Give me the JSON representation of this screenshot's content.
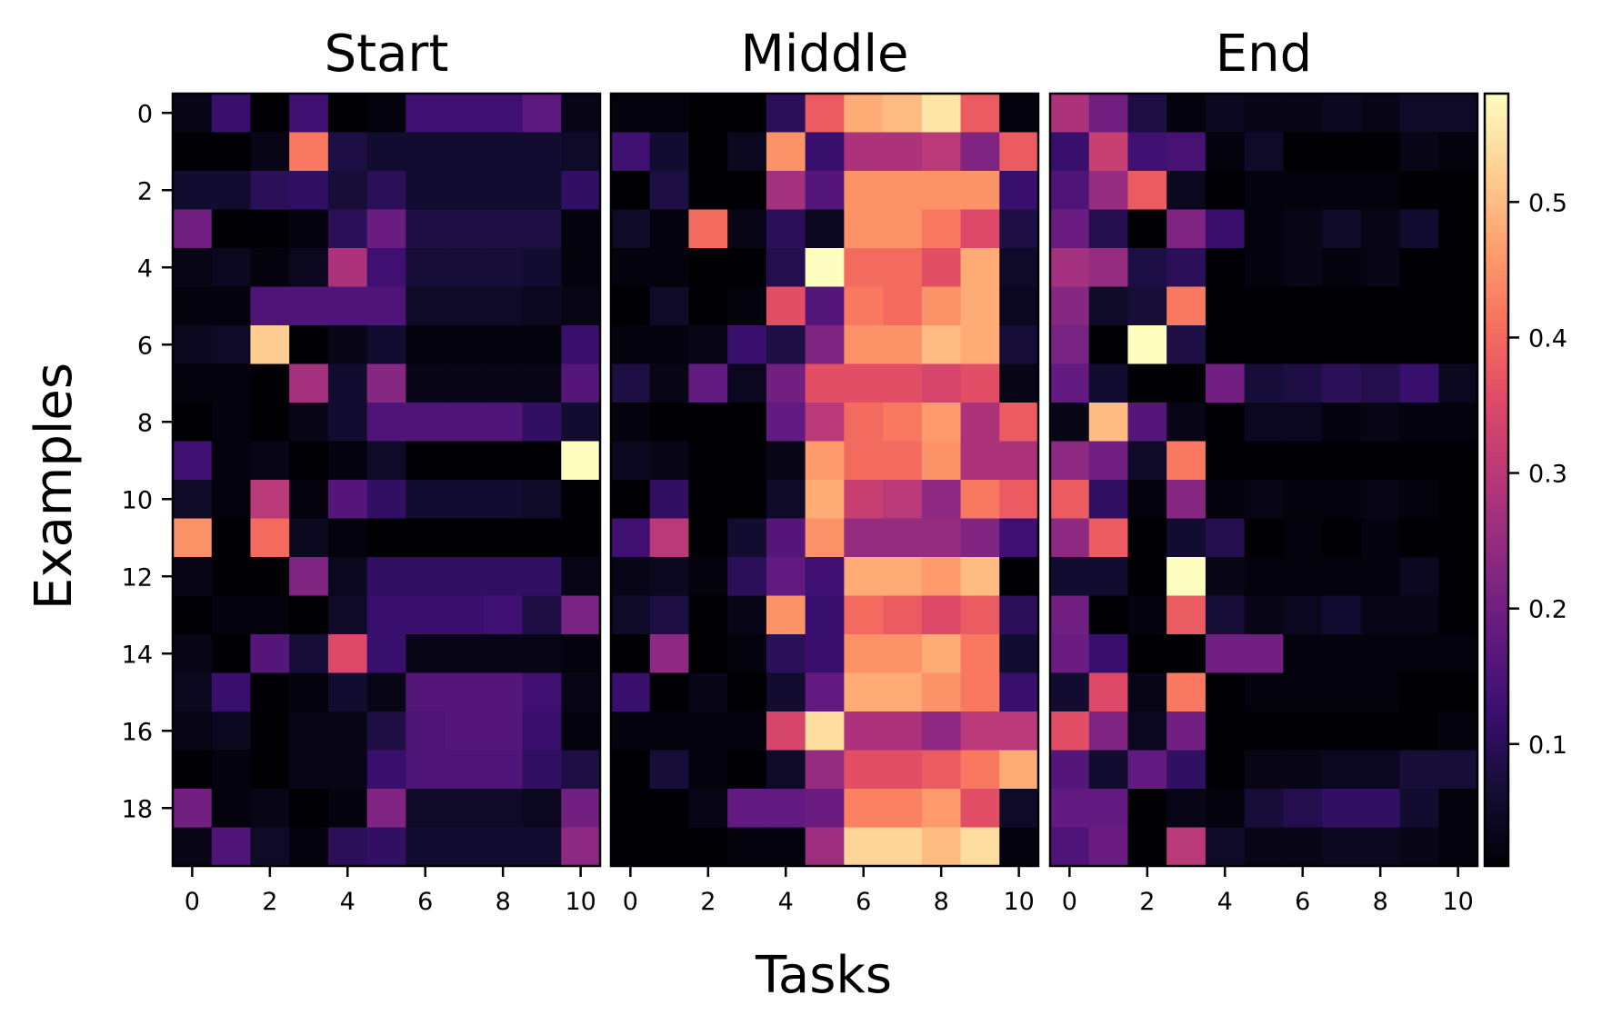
{
  "chart_data": {
    "type": "heatmap",
    "xlabel": "Tasks",
    "ylabel": "Examples",
    "colormap": "magma",
    "colorbar": {
      "min": 0.01,
      "max": 0.58,
      "ticks": [
        0.1,
        0.2,
        0.3,
        0.4,
        0.5
      ],
      "tick_labels": [
        "0.1",
        "0.2",
        "0.3",
        "0.4",
        "0.5"
      ]
    },
    "x_ticks": [
      0,
      2,
      4,
      6,
      8,
      10
    ],
    "x_tick_labels": [
      "0",
      "2",
      "4",
      "6",
      "8",
      "10"
    ],
    "y_ticks": [
      0,
      2,
      4,
      6,
      8,
      10,
      12,
      14,
      16,
      18
    ],
    "y_tick_labels": [
      "0",
      "2",
      "4",
      "6",
      "8",
      "10",
      "12",
      "14",
      "16",
      "18"
    ],
    "rows": 20,
    "cols": 11,
    "panels": [
      {
        "title": "Start",
        "values": [
          [
            0.03,
            0.12,
            0.01,
            0.13,
            0.01,
            0.02,
            0.13,
            0.13,
            0.13,
            0.17,
            0.03
          ],
          [
            0.01,
            0.01,
            0.03,
            0.42,
            0.08,
            0.06,
            0.06,
            0.06,
            0.06,
            0.06,
            0.05
          ],
          [
            0.06,
            0.06,
            0.1,
            0.11,
            0.07,
            0.1,
            0.06,
            0.06,
            0.06,
            0.06,
            0.11
          ],
          [
            0.2,
            0.01,
            0.01,
            0.02,
            0.1,
            0.19,
            0.08,
            0.08,
            0.08,
            0.08,
            0.02
          ],
          [
            0.03,
            0.04,
            0.02,
            0.04,
            0.28,
            0.13,
            0.07,
            0.07,
            0.07,
            0.06,
            0.02
          ],
          [
            0.02,
            0.02,
            0.15,
            0.15,
            0.15,
            0.15,
            0.05,
            0.05,
            0.05,
            0.04,
            0.03
          ],
          [
            0.04,
            0.05,
            0.52,
            0.01,
            0.03,
            0.06,
            0.02,
            0.02,
            0.02,
            0.02,
            0.12
          ],
          [
            0.02,
            0.02,
            0.01,
            0.27,
            0.06,
            0.23,
            0.03,
            0.03,
            0.03,
            0.03,
            0.16
          ],
          [
            0.01,
            0.02,
            0.01,
            0.03,
            0.06,
            0.15,
            0.15,
            0.15,
            0.15,
            0.11,
            0.06
          ],
          [
            0.13,
            0.02,
            0.03,
            0.01,
            0.02,
            0.05,
            0.01,
            0.01,
            0.01,
            0.01,
            0.58
          ],
          [
            0.05,
            0.02,
            0.3,
            0.02,
            0.16,
            0.11,
            0.06,
            0.06,
            0.06,
            0.05,
            0.01
          ],
          [
            0.45,
            0.01,
            0.4,
            0.04,
            0.02,
            0.01,
            0.01,
            0.01,
            0.01,
            0.01,
            0.01
          ],
          [
            0.03,
            0.01,
            0.01,
            0.22,
            0.04,
            0.11,
            0.11,
            0.11,
            0.11,
            0.11,
            0.03
          ],
          [
            0.01,
            0.02,
            0.02,
            0.01,
            0.05,
            0.12,
            0.12,
            0.12,
            0.13,
            0.08,
            0.21
          ],
          [
            0.03,
            0.01,
            0.16,
            0.07,
            0.35,
            0.12,
            0.03,
            0.03,
            0.03,
            0.03,
            0.02
          ],
          [
            0.04,
            0.12,
            0.01,
            0.02,
            0.06,
            0.03,
            0.16,
            0.16,
            0.16,
            0.13,
            0.03
          ],
          [
            0.03,
            0.04,
            0.01,
            0.03,
            0.03,
            0.08,
            0.15,
            0.16,
            0.16,
            0.12,
            0.02
          ],
          [
            0.01,
            0.02,
            0.01,
            0.03,
            0.03,
            0.12,
            0.15,
            0.15,
            0.15,
            0.11,
            0.08
          ],
          [
            0.2,
            0.02,
            0.03,
            0.01,
            0.02,
            0.22,
            0.05,
            0.05,
            0.05,
            0.04,
            0.2
          ],
          [
            0.03,
            0.15,
            0.05,
            0.02,
            0.1,
            0.11,
            0.06,
            0.06,
            0.06,
            0.06,
            0.24
          ]
        ]
      },
      {
        "title": "Middle",
        "values": [
          [
            0.02,
            0.02,
            0.01,
            0.01,
            0.1,
            0.38,
            0.48,
            0.5,
            0.55,
            0.38,
            0.02
          ],
          [
            0.13,
            0.06,
            0.01,
            0.04,
            0.45,
            0.12,
            0.28,
            0.28,
            0.3,
            0.22,
            0.38
          ],
          [
            0.01,
            0.08,
            0.01,
            0.01,
            0.27,
            0.16,
            0.45,
            0.45,
            0.45,
            0.45,
            0.12
          ],
          [
            0.05,
            0.02,
            0.4,
            0.03,
            0.1,
            0.04,
            0.45,
            0.45,
            0.42,
            0.35,
            0.08
          ],
          [
            0.02,
            0.02,
            0.01,
            0.01,
            0.09,
            0.58,
            0.4,
            0.4,
            0.36,
            0.48,
            0.05
          ],
          [
            0.01,
            0.05,
            0.01,
            0.02,
            0.36,
            0.16,
            0.42,
            0.4,
            0.45,
            0.48,
            0.04
          ],
          [
            0.02,
            0.02,
            0.03,
            0.12,
            0.08,
            0.22,
            0.45,
            0.45,
            0.5,
            0.48,
            0.07
          ],
          [
            0.08,
            0.03,
            0.18,
            0.04,
            0.2,
            0.36,
            0.36,
            0.36,
            0.34,
            0.36,
            0.03
          ],
          [
            0.02,
            0.01,
            0.01,
            0.01,
            0.18,
            0.3,
            0.4,
            0.42,
            0.46,
            0.28,
            0.38
          ],
          [
            0.04,
            0.03,
            0.01,
            0.01,
            0.03,
            0.46,
            0.4,
            0.4,
            0.45,
            0.28,
            0.28
          ],
          [
            0.01,
            0.11,
            0.01,
            0.01,
            0.05,
            0.48,
            0.32,
            0.3,
            0.24,
            0.42,
            0.38
          ],
          [
            0.13,
            0.3,
            0.01,
            0.06,
            0.16,
            0.45,
            0.25,
            0.25,
            0.25,
            0.22,
            0.13
          ],
          [
            0.03,
            0.04,
            0.02,
            0.1,
            0.18,
            0.13,
            0.48,
            0.48,
            0.46,
            0.5,
            0.01
          ],
          [
            0.05,
            0.08,
            0.01,
            0.03,
            0.45,
            0.12,
            0.4,
            0.38,
            0.35,
            0.38,
            0.1
          ],
          [
            0.01,
            0.24,
            0.01,
            0.02,
            0.1,
            0.12,
            0.45,
            0.45,
            0.48,
            0.42,
            0.06
          ],
          [
            0.12,
            0.01,
            0.03,
            0.01,
            0.06,
            0.18,
            0.48,
            0.48,
            0.45,
            0.42,
            0.12
          ],
          [
            0.02,
            0.02,
            0.02,
            0.02,
            0.34,
            0.54,
            0.28,
            0.28,
            0.24,
            0.3,
            0.3
          ],
          [
            0.01,
            0.07,
            0.02,
            0.01,
            0.05,
            0.25,
            0.36,
            0.36,
            0.38,
            0.42,
            0.48
          ],
          [
            0.01,
            0.01,
            0.03,
            0.18,
            0.18,
            0.19,
            0.43,
            0.43,
            0.46,
            0.36,
            0.05
          ],
          [
            0.01,
            0.01,
            0.01,
            0.02,
            0.02,
            0.26,
            0.53,
            0.53,
            0.5,
            0.54,
            0.02
          ]
        ]
      },
      {
        "title": "End",
        "values": [
          [
            0.28,
            0.2,
            0.08,
            0.02,
            0.04,
            0.03,
            0.03,
            0.04,
            0.03,
            0.05,
            0.05
          ],
          [
            0.12,
            0.32,
            0.13,
            0.14,
            0.02,
            0.05,
            0.01,
            0.01,
            0.01,
            0.03,
            0.02
          ],
          [
            0.15,
            0.25,
            0.38,
            0.04,
            0.01,
            0.02,
            0.02,
            0.02,
            0.02,
            0.01,
            0.01
          ],
          [
            0.19,
            0.09,
            0.01,
            0.22,
            0.12,
            0.02,
            0.03,
            0.05,
            0.03,
            0.06,
            0.01
          ],
          [
            0.27,
            0.25,
            0.08,
            0.1,
            0.01,
            0.02,
            0.03,
            0.02,
            0.03,
            0.01,
            0.01
          ],
          [
            0.23,
            0.05,
            0.07,
            0.42,
            0.01,
            0.01,
            0.01,
            0.01,
            0.01,
            0.01,
            0.01
          ],
          [
            0.21,
            0.01,
            0.58,
            0.08,
            0.01,
            0.01,
            0.01,
            0.01,
            0.01,
            0.01,
            0.01
          ],
          [
            0.18,
            0.06,
            0.01,
            0.01,
            0.2,
            0.07,
            0.08,
            0.1,
            0.09,
            0.12,
            0.04
          ],
          [
            0.03,
            0.5,
            0.16,
            0.03,
            0.01,
            0.04,
            0.04,
            0.02,
            0.03,
            0.02,
            0.02
          ],
          [
            0.24,
            0.2,
            0.05,
            0.42,
            0.01,
            0.01,
            0.01,
            0.01,
            0.01,
            0.01,
            0.01
          ],
          [
            0.38,
            0.11,
            0.02,
            0.23,
            0.02,
            0.03,
            0.02,
            0.02,
            0.03,
            0.02,
            0.01
          ],
          [
            0.24,
            0.38,
            0.01,
            0.06,
            0.09,
            0.01,
            0.02,
            0.01,
            0.02,
            0.01,
            0.01
          ],
          [
            0.06,
            0.06,
            0.01,
            0.58,
            0.03,
            0.02,
            0.02,
            0.02,
            0.02,
            0.04,
            0.01
          ],
          [
            0.2,
            0.01,
            0.02,
            0.38,
            0.07,
            0.03,
            0.04,
            0.06,
            0.03,
            0.03,
            0.01
          ],
          [
            0.19,
            0.12,
            0.01,
            0.01,
            0.2,
            0.2,
            0.02,
            0.02,
            0.02,
            0.02,
            0.02
          ],
          [
            0.06,
            0.35,
            0.03,
            0.42,
            0.01,
            0.02,
            0.02,
            0.02,
            0.02,
            0.01,
            0.01
          ],
          [
            0.36,
            0.22,
            0.04,
            0.2,
            0.01,
            0.01,
            0.01,
            0.01,
            0.01,
            0.01,
            0.02
          ],
          [
            0.16,
            0.06,
            0.18,
            0.11,
            0.01,
            0.03,
            0.03,
            0.04,
            0.04,
            0.07,
            0.07
          ],
          [
            0.18,
            0.18,
            0.01,
            0.03,
            0.02,
            0.07,
            0.09,
            0.11,
            0.11,
            0.06,
            0.02
          ],
          [
            0.15,
            0.19,
            0.01,
            0.3,
            0.05,
            0.03,
            0.03,
            0.04,
            0.04,
            0.03,
            0.02
          ]
        ]
      }
    ]
  }
}
